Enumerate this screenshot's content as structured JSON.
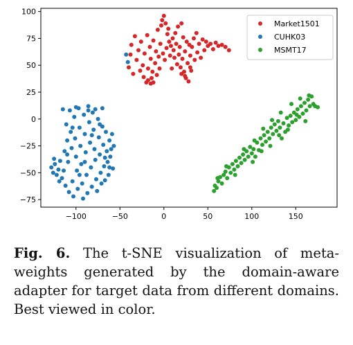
{
  "chart_data": {
    "type": "scatter",
    "title": "",
    "xlabel": "",
    "ylabel": "",
    "xlim": [
      -140,
      197
    ],
    "ylim": [
      -82,
      103
    ],
    "xticks": [
      -100,
      -50,
      0,
      50,
      100,
      150
    ],
    "yticks": [
      -75,
      -50,
      -25,
      0,
      25,
      50,
      75,
      100
    ],
    "grid": false,
    "legend_position": "top-right",
    "series": [
      {
        "name": "Market1501",
        "color": "#d62728",
        "points": [
          [
            -40,
            48
          ],
          [
            -38,
            60
          ],
          [
            -37,
            69
          ],
          [
            -35,
            42
          ],
          [
            -33,
            77
          ],
          [
            -31,
            55
          ],
          [
            -29,
            64
          ],
          [
            -27,
            45
          ],
          [
            -26,
            72
          ],
          [
            -24,
            50
          ],
          [
            -23,
            39
          ],
          [
            -22,
            61
          ],
          [
            -20,
            34
          ],
          [
            -19,
            78
          ],
          [
            -18,
            47
          ],
          [
            -16,
            67
          ],
          [
            -15,
            56
          ],
          [
            -14,
            38
          ],
          [
            -13,
            44
          ],
          [
            -12,
            73
          ],
          [
            -10,
            52
          ],
          [
            -9,
            63
          ],
          [
            -8,
            41
          ],
          [
            -7,
            83
          ],
          [
            -6,
            58
          ],
          [
            -5,
            47
          ],
          [
            -4,
            70
          ],
          [
            -3,
            87
          ],
          [
            -2,
            92
          ],
          [
            -1,
            61
          ],
          [
            0,
            96
          ],
          [
            1,
            55
          ],
          [
            2,
            89
          ],
          [
            3,
            66
          ],
          [
            4,
            79
          ],
          [
            5,
            84
          ],
          [
            6,
            72
          ],
          [
            7,
            59
          ],
          [
            8,
            68
          ],
          [
            9,
            47
          ],
          [
            10,
            75
          ],
          [
            11,
            64
          ],
          [
            12,
            57
          ],
          [
            13,
            80
          ],
          [
            14,
            70
          ],
          [
            15,
            51
          ],
          [
            16,
            86
          ],
          [
            17,
            60
          ],
          [
            18,
            67
          ],
          [
            19,
            48
          ],
          [
            20,
            89
          ],
          [
            21,
            56
          ],
          [
            22,
            76
          ],
          [
            23,
            44
          ],
          [
            24,
            63
          ],
          [
            25,
            38
          ],
          [
            26,
            72
          ],
          [
            27,
            52
          ],
          [
            28,
            35
          ],
          [
            29,
            69
          ],
          [
            30,
            59
          ],
          [
            31,
            45
          ],
          [
            32,
            67
          ],
          [
            34,
            75
          ],
          [
            35,
            55
          ],
          [
            37,
            80
          ],
          [
            38,
            62
          ],
          [
            40,
            70
          ],
          [
            42,
            57
          ],
          [
            44,
            74
          ],
          [
            46,
            64
          ],
          [
            48,
            72
          ],
          [
            50,
            68
          ],
          [
            53,
            70
          ],
          [
            56,
            65
          ],
          [
            59,
            71
          ],
          [
            62,
            68
          ],
          [
            66,
            69
          ],
          [
            70,
            67
          ],
          [
            74,
            64
          ],
          [
            -15,
            33
          ],
          [
            -12,
            34
          ],
          [
            -18,
            36
          ],
          [
            20,
            42
          ],
          [
            24,
            40
          ],
          [
            30,
            48
          ]
        ]
      },
      {
        "name": "CUHK03",
        "color": "#1f77b4",
        "points": [
          [
            -128,
            -45
          ],
          [
            -126,
            -50
          ],
          [
            -124,
            -42
          ],
          [
            -122,
            -52
          ],
          [
            -120,
            -47
          ],
          [
            -118,
            -39
          ],
          [
            -116,
            -55
          ],
          [
            -114,
            -48
          ],
          [
            -113,
            -30
          ],
          [
            -112,
            -62
          ],
          [
            -111,
            -5
          ],
          [
            -110,
            -20
          ],
          [
            -109,
            -40
          ],
          [
            -108,
            -68
          ],
          [
            -107,
            8
          ],
          [
            -106,
            -12
          ],
          [
            -105,
            -27
          ],
          [
            -104,
            -58
          ],
          [
            -103,
            -72
          ],
          [
            -102,
            2
          ],
          [
            -101,
            -18
          ],
          [
            -100,
            -35
          ],
          [
            -99,
            -48
          ],
          [
            -98,
            -65
          ],
          [
            -97,
            10
          ],
          [
            -96,
            -8
          ],
          [
            -95,
            -25
          ],
          [
            -94,
            -42
          ],
          [
            -93,
            -60
          ],
          [
            -92,
            -74
          ],
          [
            -91,
            4
          ],
          [
            -90,
            -14
          ],
          [
            -89,
            -31
          ],
          [
            -88,
            -52
          ],
          [
            -87,
            -69
          ],
          [
            -86,
            12
          ],
          [
            -85,
            -3
          ],
          [
            -84,
            -22
          ],
          [
            -83,
            -45
          ],
          [
            -82,
            -63
          ],
          [
            -81,
            6
          ],
          [
            -80,
            -10
          ],
          [
            -79,
            -28
          ],
          [
            -78,
            -38
          ],
          [
            -77,
            -56
          ],
          [
            -76,
            -67
          ],
          [
            -75,
            0
          ],
          [
            -74,
            -17
          ],
          [
            -73,
            -33
          ],
          [
            -72,
            -50
          ],
          [
            -71,
            -60
          ],
          [
            -70,
            -7
          ],
          [
            -69,
            -24
          ],
          [
            -68,
            -44
          ],
          [
            -67,
            -57
          ],
          [
            -66,
            -12
          ],
          [
            -65,
            -30
          ],
          [
            -64,
            -40
          ],
          [
            -63,
            -52
          ],
          [
            -62,
            -20
          ],
          [
            -61,
            -35
          ],
          [
            -60,
            -28
          ],
          [
            -59,
            -14
          ],
          [
            -58,
            -46
          ],
          [
            -57,
            -25
          ],
          [
            -115,
            9
          ],
          [
            -100,
            11
          ],
          [
            -86,
            8
          ],
          [
            -78,
            9
          ],
          [
            -70,
            10
          ],
          [
            -125,
            -37
          ],
          [
            -119,
            -58
          ],
          [
            -110,
            -33
          ],
          [
            -104,
            -8
          ],
          [
            -96,
            -52
          ],
          [
            -90,
            -40
          ],
          [
            -82,
            -15
          ],
          [
            -73,
            -5
          ],
          [
            -67,
            -36
          ],
          [
            -62,
            -45
          ],
          [
            -43,
            60
          ],
          [
            -41,
            53
          ]
        ]
      },
      {
        "name": "MSMT17",
        "color": "#2ca02c",
        "points": [
          [
            57,
            -67
          ],
          [
            58,
            -62
          ],
          [
            60,
            -64
          ],
          [
            62,
            -58
          ],
          [
            64,
            -54
          ],
          [
            66,
            -60
          ],
          [
            68,
            -52
          ],
          [
            70,
            -49
          ],
          [
            72,
            -55
          ],
          [
            74,
            -45
          ],
          [
            76,
            -50
          ],
          [
            78,
            -42
          ],
          [
            80,
            -47
          ],
          [
            82,
            -39
          ],
          [
            84,
            -44
          ],
          [
            86,
            -36
          ],
          [
            88,
            -41
          ],
          [
            90,
            -33
          ],
          [
            92,
            -38
          ],
          [
            94,
            -30
          ],
          [
            96,
            -35
          ],
          [
            98,
            -26
          ],
          [
            100,
            -32
          ],
          [
            102,
            -28
          ],
          [
            104,
            -35
          ],
          [
            106,
            -22
          ],
          [
            108,
            -29
          ],
          [
            110,
            -18
          ],
          [
            112,
            -24
          ],
          [
            114,
            -15
          ],
          [
            116,
            -21
          ],
          [
            118,
            -12
          ],
          [
            120,
            -18
          ],
          [
            122,
            -8
          ],
          [
            124,
            -14
          ],
          [
            126,
            -5
          ],
          [
            128,
            -11
          ],
          [
            130,
            -2
          ],
          [
            132,
            -8
          ],
          [
            134,
            -18
          ],
          [
            136,
            -4
          ],
          [
            138,
            -12
          ],
          [
            140,
            1
          ],
          [
            142,
            -6
          ],
          [
            144,
            3
          ],
          [
            146,
            -3
          ],
          [
            148,
            6
          ],
          [
            150,
            -1
          ],
          [
            152,
            9
          ],
          [
            154,
            2
          ],
          [
            156,
            12
          ],
          [
            158,
            5
          ],
          [
            160,
            15
          ],
          [
            162,
            8
          ],
          [
            164,
            18
          ],
          [
            166,
            12
          ],
          [
            168,
            21
          ],
          [
            170,
            14
          ],
          [
            172,
            12
          ],
          [
            175,
            11
          ],
          [
            61,
            -55
          ],
          [
            71,
            -44
          ],
          [
            81,
            -52
          ],
          [
            91,
            -28
          ],
          [
            101,
            -40
          ],
          [
            111,
            -30
          ],
          [
            121,
            -25
          ],
          [
            131,
            -15
          ],
          [
            141,
            -10
          ],
          [
            151,
            4
          ],
          [
            161,
            -2
          ],
          [
            103,
            -20
          ],
          [
            113,
            -9
          ],
          [
            123,
            -1
          ],
          [
            133,
            6
          ],
          [
            145,
            14
          ],
          [
            155,
            19
          ],
          [
            165,
            22
          ]
        ]
      }
    ]
  },
  "caption": {
    "label": "Fig. 6.",
    "text": "The t-SNE visualization of meta-weights generated by the domain-aware adapter for target data from different domains. Best viewed in color."
  }
}
